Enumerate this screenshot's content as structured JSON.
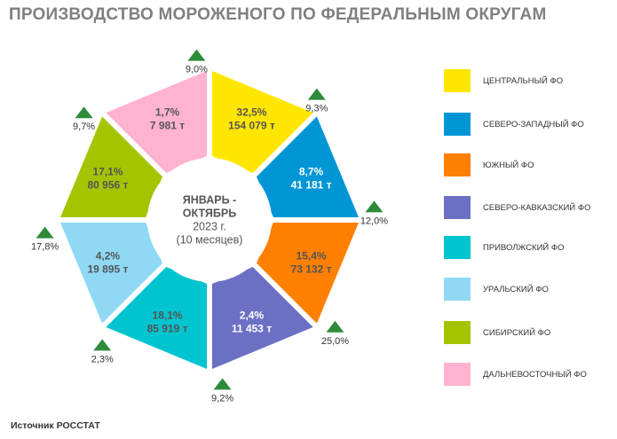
{
  "title": "ПРОИЗВОДСТВО МОРОЖЕНОГО ПО ФЕДЕРАЛЬНЫМ ОКРУГАМ",
  "center_text": [
    "ЯНВАРЬ -",
    "ОКТЯБРЬ",
    "2023 г.",
    "(10 месяцев)"
  ],
  "source": "Источник РОССТАТ",
  "colors": {
    "growth_arrow": "#2e8b3a",
    "title": "#808080"
  },
  "chart_data": {
    "type": "donut",
    "unit": "т",
    "segments": [
      {
        "region": "ЦЕНТРАЛЬНЫЙ ФО",
        "share": "32,5%",
        "volume": "154 079 т",
        "growth": "9,3%",
        "color": "#ffe600",
        "text_color": "#555555"
      },
      {
        "region": "СЕВЕРО-ЗАПАДНЫЙ ФО",
        "share": "8,7%",
        "volume": "41 181 т",
        "growth": "12,0%",
        "color": "#0096d6",
        "text_color": "#ffffff"
      },
      {
        "region": "ЮЖНЫЙ ФО",
        "share": "15,4%",
        "volume": "73 132 т",
        "growth": "25,0%",
        "color": "#ff7f00",
        "text_color": "#555555"
      },
      {
        "region": "СЕВЕРО-КАВКАЗСКИЙ ФО",
        "share": "2,4%",
        "volume": "11 453 т",
        "growth": "9,2%",
        "color": "#6b70c4",
        "text_color": "#ffffff"
      },
      {
        "region": "ПРИВОЛЖСКИЙ ФО",
        "share": "18,1%",
        "volume": "85 919 т",
        "growth": "2,3%",
        "color": "#00c4cf",
        "text_color": "#555555"
      },
      {
        "region": "УРАЛЬСКИЙ ФО",
        "share": "4,2%",
        "volume": "19 895 т",
        "growth": "17,8%",
        "color": "#8fd9f5",
        "text_color": "#555555"
      },
      {
        "region": "СИБИРСКИЙ ФО",
        "share": "17,1%",
        "volume": "80 956 т",
        "growth": "9,7%",
        "color": "#a5c400",
        "text_color": "#555555"
      },
      {
        "region": "ДАЛЬНЕВОСТОЧНЫЙ ФО",
        "share": "1,7%",
        "volume": "7 981 т",
        "growth": "9,0%",
        "color": "#ffb3d1",
        "text_color": "#555555"
      }
    ]
  }
}
